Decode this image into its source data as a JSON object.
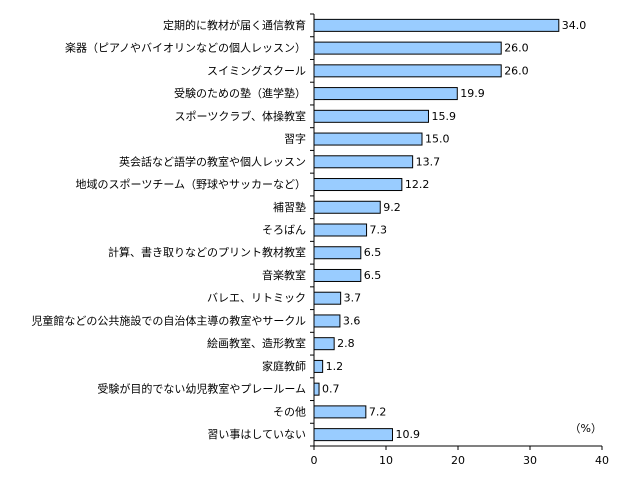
{
  "chart_data": {
    "type": "bar",
    "orientation": "horizontal",
    "categories": [
      "定期的に教材が届く通信教育",
      "楽器（ピアノやバイオリンなどの個人レッスン）",
      "スイミングスクール",
      "受験のための塾（進学塾）",
      "スポーツクラブ、体操教室",
      "習字",
      "英会話など語学の教室や個人レッスン",
      "地域のスポーツチーム（野球やサッカーなど）",
      "補習塾",
      "そろばん",
      "計算、書き取りなどのプリント教材教室",
      "音楽教室",
      "バレエ、リトミック",
      "児童館などの公共施設での自治体主導の教室やサークル",
      "絵画教室、造形教室",
      "家庭教師",
      "受験が目的でない幼児教室やプレールーム",
      "その他",
      "習い事はしていない"
    ],
    "values": [
      34.0,
      26.0,
      26.0,
      19.9,
      15.9,
      15.0,
      13.7,
      12.2,
      9.2,
      7.3,
      6.5,
      6.5,
      3.7,
      3.6,
      2.8,
      1.2,
      0.7,
      7.2,
      10.9
    ],
    "value_labels": [
      "34.0",
      "26.0",
      "26.0",
      "19.9",
      "15.9",
      "15.0",
      "13.7",
      "12.2",
      "9.2",
      "7.3",
      "6.5",
      "6.5",
      "3.7",
      "3.6",
      "2.8",
      "1.2",
      "0.7",
      "7.2",
      "10.9"
    ],
    "xlim": [
      0,
      40
    ],
    "x_ticks": [
      0,
      10,
      20,
      30,
      40
    ],
    "unit_label": "（%）",
    "grid": false,
    "bar_color": "#99ccff",
    "bar_edge_color": "#000000"
  }
}
